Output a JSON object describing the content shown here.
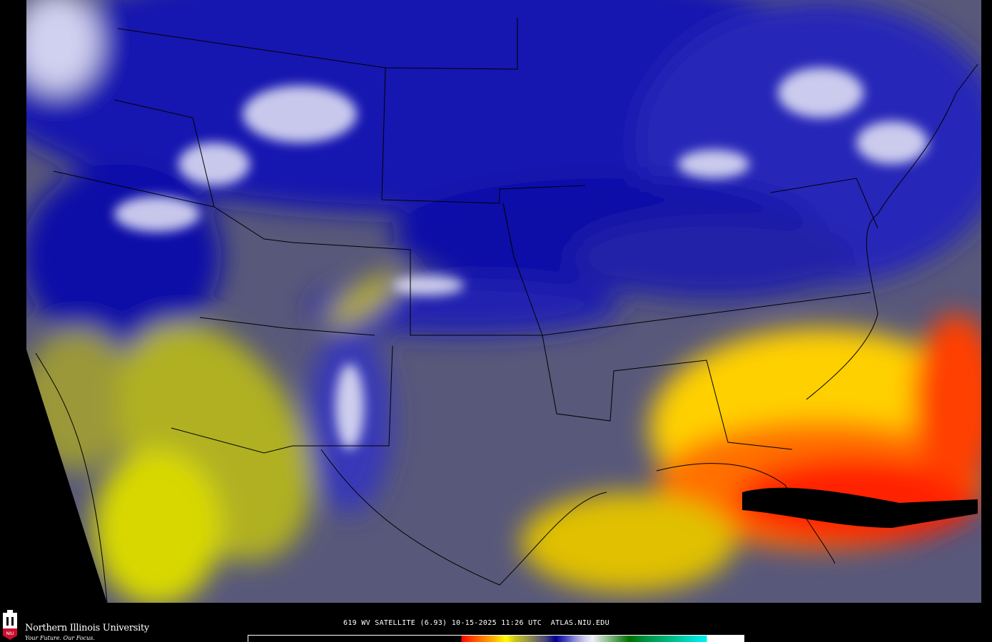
{
  "header": {
    "caption": "619 WV SATELLITE (6.93) 10-15-2025 11:26 UTC  ATLAS.NIU.EDU"
  },
  "branding": {
    "university": "Northern Illinois University",
    "tagline": "Your Future. Our Focus.",
    "logo_text": "NIU",
    "brand_color": "#c8102e"
  },
  "map": {
    "product": "water vapor satellite imagery",
    "region": "Contiguous United States",
    "colorbar": [
      "#000000",
      "#ff0000",
      "#ff8000",
      "#ffff00",
      "#a0a040",
      "#484878",
      "#000090",
      "#9090d8",
      "#f0f0f8",
      "#80b880",
      "#007000",
      "#00b070",
      "#00f0f0"
    ]
  }
}
